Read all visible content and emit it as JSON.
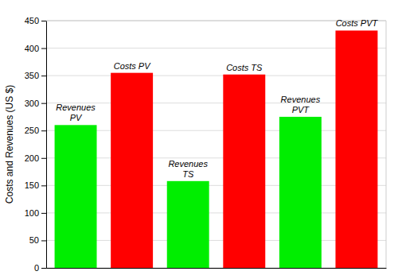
{
  "chart_data": {
    "type": "bar",
    "categories": [
      "Revenues\nPV",
      "Costs PV",
      "Revenues\nTS",
      "Costs TS",
      "Revenues\nPVT",
      "Costs PVT"
    ],
    "values": [
      260,
      355,
      158,
      352,
      275,
      432
    ],
    "colors": [
      "#00ee00",
      "#ff0000",
      "#00ee00",
      "#ff0000",
      "#00ee00",
      "#ff0000"
    ],
    "ylabel": "Costs and Revenues (US $)",
    "ylim": [
      0,
      450
    ],
    "yticks": [
      0,
      50,
      100,
      150,
      200,
      250,
      300,
      350,
      400,
      450
    ],
    "grid": true,
    "tick_labels": "y"
  }
}
